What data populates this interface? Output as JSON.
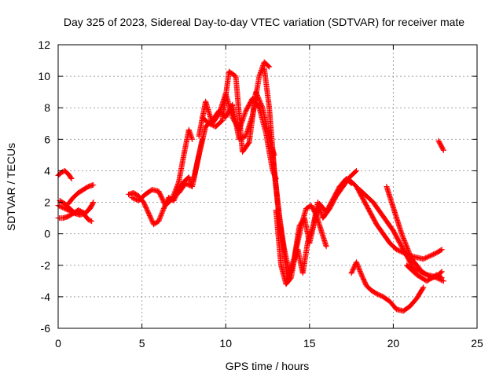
{
  "chart_data": {
    "type": "scatter",
    "title": "Day 325 of 2023, Sidereal Day-to-day VTEC variation (SDTVAR) for receiver mate",
    "xlabel": "GPS time / hours",
    "ylabel": "SDTVAR / TECUs",
    "xlim": [
      0,
      25
    ],
    "ylim": [
      -6,
      12
    ],
    "xticks": [
      0,
      5,
      10,
      15,
      20,
      25
    ],
    "yticks": [
      -6,
      -4,
      -2,
      0,
      2,
      4,
      6,
      8,
      10,
      12
    ],
    "grid": true,
    "marker": "plus",
    "color": "#ff0000",
    "series": [
      {
        "x": [
          0.0,
          0.2,
          0.4,
          0.6,
          0.8,
          1.0,
          1.2,
          1.4,
          1.6,
          1.8,
          2.0
        ],
        "y": [
          1.8,
          1.7,
          1.6,
          1.5,
          1.4,
          1.3,
          1.5,
          1.4,
          1.3,
          1.5,
          1.8
        ]
      },
      {
        "x": [
          0.0,
          0.3,
          0.6,
          0.9,
          1.2,
          1.5,
          1.8,
          2.0
        ],
        "y": [
          1.0,
          1.0,
          1.1,
          1.3,
          1.5,
          1.3,
          0.9,
          0.8
        ]
      },
      {
        "x": [
          0.6,
          0.9,
          1.2,
          1.5,
          1.8,
          2.1
        ],
        "y": [
          1.9,
          2.3,
          2.6,
          2.8,
          3.0,
          3.1
        ]
      },
      {
        "x": [
          0.0,
          0.2,
          0.4,
          0.6,
          0.8
        ],
        "y": [
          3.7,
          3.9,
          4.0,
          3.8,
          3.5
        ]
      },
      {
        "x": [
          0.1,
          0.4,
          0.7,
          1.0,
          1.3,
          1.6,
          1.9,
          2.1
        ],
        "y": [
          2.1,
          1.9,
          1.6,
          1.3,
          1.2,
          1.3,
          1.6,
          2.0
        ]
      },
      {
        "x": [
          4.2,
          4.5,
          4.8,
          5.1,
          5.4,
          5.7,
          6.0,
          6.3,
          6.6,
          6.9,
          7.2,
          7.5,
          7.8,
          8.0,
          8.3,
          8.6
        ],
        "y": [
          2.5,
          2.6,
          2.4,
          2.0,
          1.3,
          0.6,
          0.8,
          1.6,
          2.3,
          2.1,
          2.8,
          3.3,
          3.6,
          3.0,
          4.5,
          6.0
        ]
      },
      {
        "x": [
          4.4,
          4.8,
          5.2,
          5.6,
          6.0,
          6.4,
          6.8,
          7.2,
          7.5,
          7.8,
          8.0
        ],
        "y": [
          2.3,
          2.1,
          2.5,
          2.8,
          2.7,
          1.8,
          2.2,
          3.3,
          5.0,
          6.6,
          6.0
        ]
      },
      {
        "x": [
          7.2,
          7.6,
          8.0,
          8.4,
          8.8,
          9.2,
          9.6,
          10.0,
          10.4,
          10.8,
          11.2,
          11.6,
          12.0,
          12.3,
          12.6
        ],
        "y": [
          2.6,
          3.2,
          3.0,
          5.0,
          6.8,
          7.2,
          7.8,
          7.4,
          8.2,
          6.0,
          6.2,
          7.5,
          10.0,
          10.9,
          10.6
        ]
      },
      {
        "x": [
          8.4,
          8.8,
          9.2,
          9.6,
          10.0,
          10.4,
          10.8,
          11.2,
          11.6,
          12.0,
          12.4,
          12.8,
          13.0
        ],
        "y": [
          6.2,
          8.4,
          7.0,
          7.6,
          8.9,
          7.4,
          6.6,
          7.8,
          8.6,
          8.0,
          6.4,
          4.0,
          3.5
        ]
      },
      {
        "x": [
          8.6,
          9.0,
          9.4,
          9.8,
          10.2,
          10.6,
          11.0,
          11.4,
          11.8,
          12.2,
          12.6,
          12.9
        ],
        "y": [
          7.4,
          7.0,
          6.8,
          7.2,
          10.3,
          10.0,
          5.2,
          5.8,
          9.0,
          8.0,
          6.0,
          5.0
        ]
      },
      {
        "x": [
          12.3,
          12.6,
          12.9,
          13.2,
          13.5,
          13.8,
          14.1,
          14.4,
          14.7,
          15.0,
          15.3,
          15.6,
          16.0,
          16.4,
          16.8,
          17.2,
          17.5
        ],
        "y": [
          10.5,
          8.0,
          4.0,
          1.0,
          -1.0,
          -2.5,
          -1.5,
          0.5,
          1.0,
          -0.6,
          0.8,
          1.9,
          1.4,
          2.2,
          3.0,
          3.5,
          3.2
        ]
      },
      {
        "x": [
          12.8,
          13.1,
          13.4,
          13.7,
          14.0,
          14.3,
          14.6,
          14.9,
          15.2,
          15.5,
          15.8,
          16.2,
          16.6,
          17.0,
          17.4,
          17.8
        ],
        "y": [
          5.0,
          2.0,
          -0.5,
          -3.0,
          -2.0,
          -1.0,
          -2.5,
          -0.5,
          0.4,
          2.0,
          1.0,
          1.6,
          2.4,
          3.0,
          3.6,
          4.0
        ]
      },
      {
        "x": [
          13.0,
          13.3,
          13.6,
          13.9,
          14.2,
          14.5,
          14.8,
          15.1,
          15.4,
          15.7,
          16.0
        ],
        "y": [
          1.5,
          -2.0,
          -3.2,
          -2.8,
          -1.0,
          0.5,
          1.6,
          1.8,
          1.2,
          0.2,
          -0.8
        ]
      },
      {
        "x": [
          17.4,
          17.8,
          18.2,
          18.6,
          19.0,
          19.4,
          19.8,
          20.2,
          20.6,
          21.0,
          21.4,
          21.8,
          22.2,
          22.6,
          22.9
        ],
        "y": [
          3.4,
          3.0,
          2.2,
          1.4,
          0.6,
          0.0,
          -0.6,
          -1.0,
          -1.2,
          -1.4,
          -1.5,
          -1.6,
          -1.4,
          -1.2,
          -1.0
        ]
      },
      {
        "x": [
          18.0,
          18.4,
          18.8,
          19.2,
          19.6,
          20.0,
          20.4,
          20.8,
          21.2,
          21.6,
          22.0,
          22.4,
          22.8,
          23.0
        ],
        "y": [
          2.8,
          2.4,
          2.0,
          1.4,
          0.8,
          0.2,
          -0.6,
          -1.4,
          -2.2,
          -2.4,
          -2.6,
          -2.7,
          -2.9,
          -3.0
        ]
      },
      {
        "x": [
          19.6,
          19.9,
          20.2,
          20.5,
          20.8,
          21.1,
          21.4,
          21.7,
          22.0,
          22.3,
          22.6,
          22.9
        ],
        "y": [
          3.0,
          2.0,
          1.0,
          0.0,
          -0.8,
          -1.6,
          -2.0,
          -2.4,
          -2.6,
          -2.8,
          -2.7,
          -2.4
        ]
      },
      {
        "x": [
          17.5,
          17.8,
          18.1,
          18.4,
          18.7,
          19.0,
          19.4,
          19.8,
          20.2,
          20.6,
          21.0,
          21.4,
          21.8
        ],
        "y": [
          -2.5,
          -1.8,
          -2.6,
          -3.3,
          -3.6,
          -3.8,
          -4.0,
          -4.3,
          -4.8,
          -4.9,
          -4.6,
          -4.1,
          -3.4
        ]
      },
      {
        "x": [
          20.8,
          21.1,
          21.4,
          21.7,
          22.0,
          22.3,
          22.6,
          22.9
        ],
        "y": [
          -2.0,
          -2.3,
          -2.6,
          -2.8,
          -3.0,
          -2.8,
          -2.6,
          -2.8
        ]
      },
      {
        "x": [
          22.7,
          22.8,
          22.9,
          23.0
        ],
        "y": [
          5.9,
          5.7,
          5.5,
          5.3
        ]
      }
    ]
  }
}
